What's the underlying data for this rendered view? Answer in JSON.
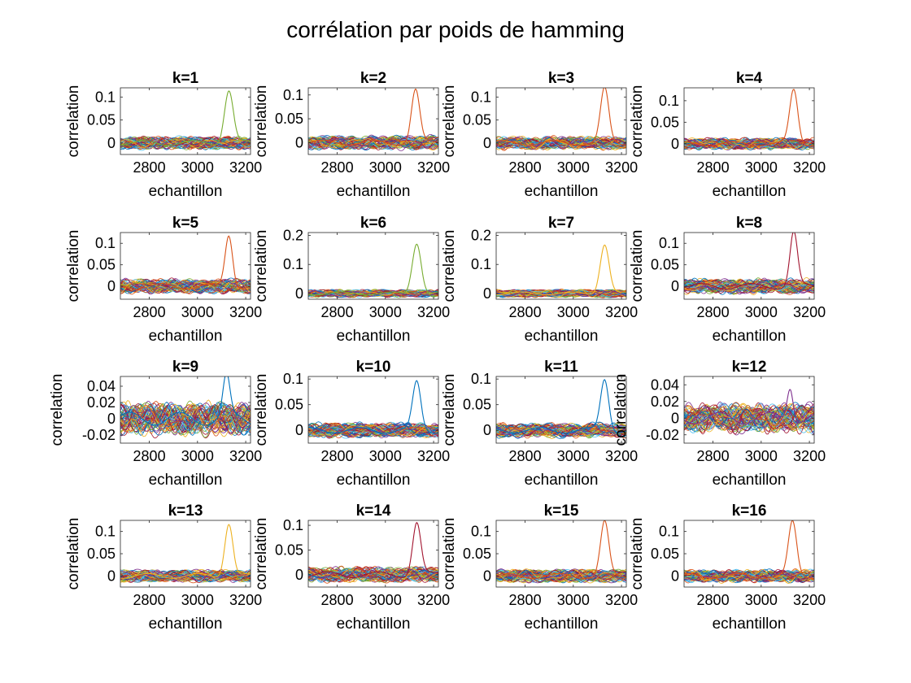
{
  "figure": {
    "title": "corrélation par poids de hamming"
  },
  "chart_data": {
    "type": "line",
    "title": "corrélation par poids de hamming",
    "colors": [
      "#0072BD",
      "#D95319",
      "#EDB120",
      "#7E2F8E",
      "#77AC30",
      "#4DBEEE",
      "#A2142F"
    ],
    "grid": false,
    "xlim": [
      2680,
      3220
    ],
    "xticks": [
      2800,
      3000,
      3200
    ],
    "noise_series_per_subplot": 60,
    "subplots": [
      {
        "title": "k=1",
        "xlabel": "echantillon",
        "ylabel": "correlation",
        "ylim": [
          -0.025,
          0.12
        ],
        "yticks": [
          0,
          0.05,
          0.1
        ],
        "ytick_labels": [
          "0",
          "0.05",
          "0.1"
        ],
        "noise_amplitude": 0.011,
        "peak": {
          "x": 3130,
          "y": 0.115,
          "width": 26,
          "color": "#77AC30"
        }
      },
      {
        "title": "k=2",
        "xlabel": "echantillon",
        "ylabel": "correlation",
        "ylim": [
          -0.025,
          0.115
        ],
        "yticks": [
          0,
          0.05,
          0.1
        ],
        "ytick_labels": [
          "0",
          "0.05",
          "0.1"
        ],
        "noise_amplitude": 0.011,
        "peak": {
          "x": 3125,
          "y": 0.11,
          "width": 24,
          "color": "#D95319"
        }
      },
      {
        "title": "k=3",
        "xlabel": "echantillon",
        "ylabel": "correlation",
        "ylim": [
          -0.025,
          0.12
        ],
        "yticks": [
          0,
          0.05,
          0.1
        ],
        "ytick_labels": [
          "0",
          "0.05",
          "0.1"
        ],
        "noise_amplitude": 0.011,
        "peak": {
          "x": 3130,
          "y": 0.117,
          "width": 24,
          "color": "#D95319"
        }
      },
      {
        "title": "k=4",
        "xlabel": "echantillon",
        "ylabel": "correlation",
        "ylim": [
          -0.025,
          0.13
        ],
        "yticks": [
          0,
          0.05,
          0.1
        ],
        "ytick_labels": [
          "0",
          "0.05",
          "0.1"
        ],
        "noise_amplitude": 0.01,
        "peak": {
          "x": 3135,
          "y": 0.125,
          "width": 24,
          "color": "#D95319"
        }
      },
      {
        "title": "k=5",
        "xlabel": "echantillon",
        "ylabel": "correlation",
        "ylim": [
          -0.03,
          0.125
        ],
        "yticks": [
          0,
          0.05,
          0.1
        ],
        "ytick_labels": [
          "0",
          "0.05",
          "0.1"
        ],
        "noise_amplitude": 0.013,
        "peak": {
          "x": 3130,
          "y": 0.12,
          "width": 22,
          "color": "#D95319"
        }
      },
      {
        "title": "k=6",
        "xlabel": "echantillon",
        "ylabel": "correlation",
        "ylim": [
          -0.02,
          0.21
        ],
        "yticks": [
          0,
          0.1,
          0.2
        ],
        "ytick_labels": [
          "0",
          "0.1",
          "0.2"
        ],
        "noise_amplitude": 0.01,
        "peak": {
          "x": 3130,
          "y": 0.175,
          "width": 26,
          "color": "#77AC30"
        }
      },
      {
        "title": "k=7",
        "xlabel": "echantillon",
        "ylabel": "correlation",
        "ylim": [
          -0.02,
          0.21
        ],
        "yticks": [
          0,
          0.1,
          0.2
        ],
        "ytick_labels": [
          "0",
          "0.1",
          "0.2"
        ],
        "noise_amplitude": 0.01,
        "peak": {
          "x": 3130,
          "y": 0.17,
          "width": 26,
          "color": "#EDB120"
        }
      },
      {
        "title": "k=8",
        "xlabel": "echantillon",
        "ylabel": "correlation",
        "ylim": [
          -0.03,
          0.125
        ],
        "yticks": [
          0,
          0.05,
          0.1
        ],
        "ytick_labels": [
          "0",
          "0.05",
          "0.1"
        ],
        "noise_amplitude": 0.013,
        "peak": {
          "x": 3135,
          "y": 0.125,
          "width": 22,
          "color": "#A2142F"
        }
      },
      {
        "title": "k=9",
        "xlabel": "echantillon",
        "ylabel": "correlation",
        "ylim": [
          -0.03,
          0.052
        ],
        "yticks": [
          -0.02,
          0,
          0.02,
          0.04
        ],
        "ytick_labels": [
          "-0.02",
          "0",
          "0.02",
          "0.04"
        ],
        "noise_amplitude": 0.016,
        "peak": {
          "x": 3120,
          "y": 0.05,
          "width": 20,
          "color": "#0072BD"
        }
      },
      {
        "title": "k=10",
        "xlabel": "echantillon",
        "ylabel": "correlation",
        "ylim": [
          -0.025,
          0.105
        ],
        "yticks": [
          0,
          0.05,
          0.1
        ],
        "ytick_labels": [
          "0",
          "0.05",
          "0.1"
        ],
        "noise_amplitude": 0.011,
        "peak": {
          "x": 3130,
          "y": 0.093,
          "width": 24,
          "color": "#0072BD"
        }
      },
      {
        "title": "k=11",
        "xlabel": "echantillon",
        "ylabel": "correlation",
        "ylim": [
          -0.025,
          0.105
        ],
        "yticks": [
          0,
          0.05,
          0.1
        ],
        "ytick_labels": [
          "0",
          "0.05",
          "0.1"
        ],
        "noise_amplitude": 0.011,
        "peak": {
          "x": 3130,
          "y": 0.1,
          "width": 24,
          "color": "#0072BD"
        }
      },
      {
        "title": "k=12",
        "xlabel": "echantillon",
        "ylabel": "correlation",
        "ylim": [
          -0.03,
          0.05
        ],
        "yticks": [
          -0.02,
          0,
          0.02,
          0.04
        ],
        "ytick_labels": [
          "-0.02",
          "0",
          "0.02",
          "0.04"
        ],
        "noise_amplitude": 0.014,
        "peak": {
          "x": 3120,
          "y": 0.04,
          "width": 18,
          "color": "#7E2F8E"
        }
      },
      {
        "title": "k=13",
        "xlabel": "echantillon",
        "ylabel": "correlation",
        "ylim": [
          -0.025,
          0.125
        ],
        "yticks": [
          0,
          0.05,
          0.1
        ],
        "ytick_labels": [
          "0",
          "0.05",
          "0.1"
        ],
        "noise_amplitude": 0.011,
        "peak": {
          "x": 3130,
          "y": 0.12,
          "width": 24,
          "color": "#EDB120"
        }
      },
      {
        "title": "k=14",
        "xlabel": "echantillon",
        "ylabel": "correlation",
        "ylim": [
          -0.025,
          0.11
        ],
        "yticks": [
          0,
          0.05,
          0.1
        ],
        "ytick_labels": [
          "0",
          "0.05",
          "0.1"
        ],
        "noise_amplitude": 0.012,
        "peak": {
          "x": 3130,
          "y": 0.105,
          "width": 24,
          "color": "#A2142F"
        }
      },
      {
        "title": "k=15",
        "xlabel": "echantillon",
        "ylabel": "correlation",
        "ylim": [
          -0.025,
          0.125
        ],
        "yticks": [
          0,
          0.05,
          0.1
        ],
        "ytick_labels": [
          "0",
          "0.05",
          "0.1"
        ],
        "noise_amplitude": 0.011,
        "peak": {
          "x": 3130,
          "y": 0.12,
          "width": 24,
          "color": "#D95319"
        }
      },
      {
        "title": "k=16",
        "xlabel": "echantillon",
        "ylabel": "correlation",
        "ylim": [
          -0.025,
          0.125
        ],
        "yticks": [
          0,
          0.05,
          0.1
        ],
        "ytick_labels": [
          "0",
          "0.05",
          "0.1"
        ],
        "noise_amplitude": 0.011,
        "peak": {
          "x": 3130,
          "y": 0.12,
          "width": 24,
          "color": "#D95319"
        }
      }
    ]
  }
}
